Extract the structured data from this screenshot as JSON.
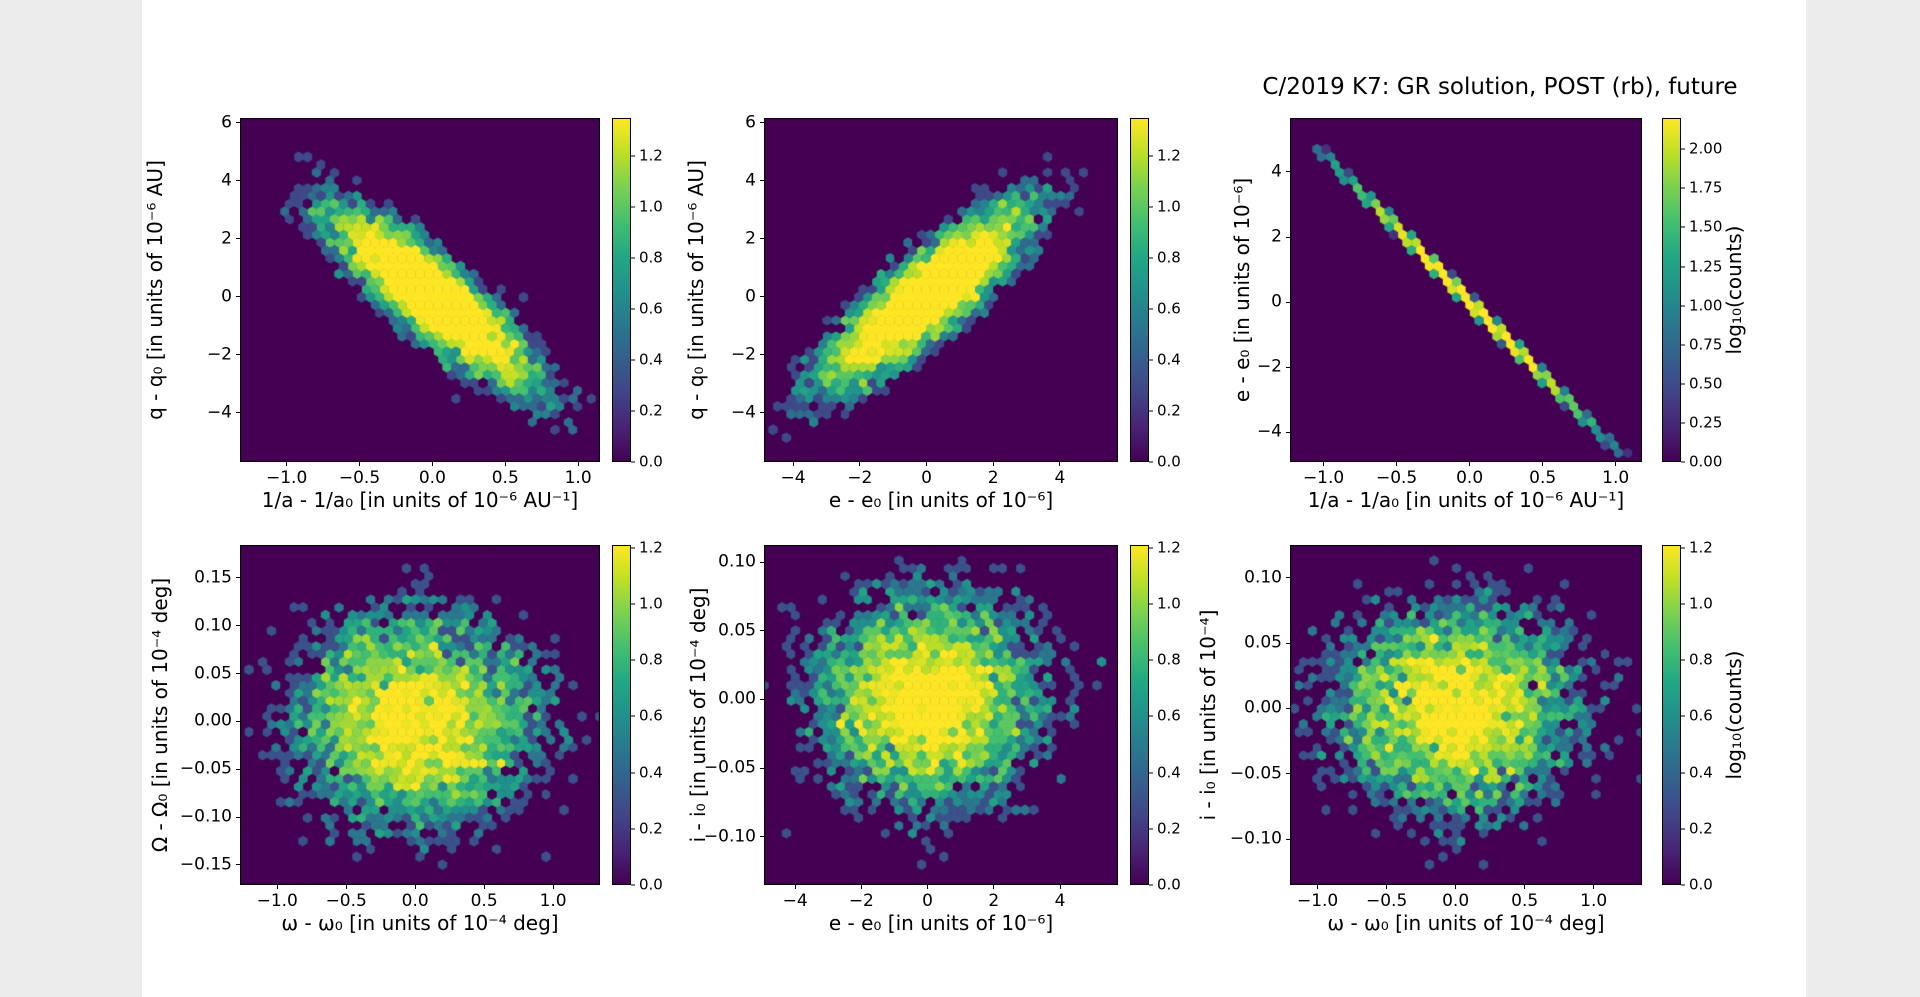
{
  "figure_title": "C/2019 K7: GR solution, POST (rb), future",
  "colors": {
    "page_margin": "#ececec",
    "figure_background": "#ffffff",
    "plot_background": "#440154",
    "axis_color": "#000000",
    "viridis_stops": [
      "#440154",
      "#482475",
      "#414487",
      "#355f8d",
      "#2a788e",
      "#21918c",
      "#22a884",
      "#44bf70",
      "#7ad151",
      "#bddf26",
      "#fde725"
    ]
  },
  "chart_data": [
    {
      "name": "q - q0 vs 1/a - 1/a0",
      "type": "hexbin",
      "xlabel": "1/a - 1/a₀ [in units of 10⁻⁶ AU⁻¹]",
      "ylabel": "q - q₀ [in units of 10⁻⁶ AU]",
      "xlim": [
        -1.32,
        1.15
      ],
      "ylim": [
        -5.69,
        6.17
      ],
      "xticks": {
        "values": [
          -1.0,
          -0.5,
          0.0,
          0.5,
          1.0
        ],
        "labels": [
          "−1.0",
          "−0.5",
          "0.0",
          "0.5",
          "1.0"
        ]
      },
      "yticks": {
        "values": [
          6,
          4,
          2,
          0,
          -2,
          -4
        ],
        "labels": [
          "6",
          "4",
          "2",
          "0",
          "−2",
          "−4"
        ]
      },
      "distribution": {
        "kind": "gaussian",
        "n": 6000,
        "center": [
          0,
          0
        ],
        "sigma": [
          0.36,
          1.6
        ],
        "rho": -0.87,
        "seed": 11
      },
      "colorbar": {
        "vmax": 1.35,
        "tick_values": [
          0,
          0.2,
          0.4,
          0.6,
          0.8,
          1.0,
          1.2
        ],
        "tick_labels": [
          "0.0",
          "0.2",
          "0.4",
          "0.6",
          "0.8",
          "1.0",
          "1.2"
        ],
        "label": ""
      }
    },
    {
      "name": "q - q0 vs e - e0",
      "type": "hexbin",
      "xlabel": "e - e₀ [in units of 10⁻⁶]",
      "ylabel": "q - q₀ [in units of 10⁻⁶ AU]",
      "xlim": [
        -4.87,
        5.74
      ],
      "ylim": [
        -5.69,
        6.17
      ],
      "xticks": {
        "values": [
          -4,
          -2,
          0,
          2,
          4
        ],
        "labels": [
          "−4",
          "−2",
          "0",
          "2",
          "4"
        ]
      },
      "yticks": {
        "values": [
          6,
          4,
          2,
          0,
          -2,
          -4
        ],
        "labels": [
          "6",
          "4",
          "2",
          "0",
          "−2",
          "−4"
        ]
      },
      "distribution": {
        "kind": "gaussian",
        "n": 6000,
        "center": [
          0,
          0
        ],
        "sigma": [
          1.6,
          1.6
        ],
        "rho": 0.86,
        "seed": 22
      },
      "colorbar": {
        "vmax": 1.35,
        "tick_values": [
          0,
          0.2,
          0.4,
          0.6,
          0.8,
          1.0,
          1.2
        ],
        "tick_labels": [
          "0.0",
          "0.2",
          "0.4",
          "0.6",
          "0.8",
          "1.0",
          "1.2"
        ],
        "label": ""
      }
    },
    {
      "name": "e - e0 vs 1/a - 1/a0",
      "type": "hexbin",
      "xlabel": "1/a - 1/a₀ [in units of 10⁻⁶ AU⁻¹]",
      "ylabel": "e - e₀ [in units of 10⁻⁶]",
      "xlim": [
        -1.23,
        1.18
      ],
      "ylim": [
        -4.92,
        5.66
      ],
      "xticks": {
        "values": [
          -1.0,
          -0.5,
          0.0,
          0.5,
          1.0
        ],
        "labels": [
          "−1.0",
          "−0.5",
          "0.0",
          "0.5",
          "1.0"
        ]
      },
      "yticks": {
        "values": [
          4,
          2,
          0,
          -2,
          -4
        ],
        "labels": [
          "4",
          "2",
          "0",
          "−2",
          "−4"
        ]
      },
      "distribution": {
        "kind": "line",
        "n": 6000,
        "sigma": 0.37,
        "slope": -4.55,
        "noise": 0.04,
        "xclip": 1.06,
        "seed": 33
      },
      "colorbar": {
        "vmax": 2.2,
        "tick_values": [
          0,
          0.25,
          0.5,
          0.75,
          1.0,
          1.25,
          1.5,
          1.75,
          2.0
        ],
        "tick_labels": [
          "0.00",
          "0.25",
          "0.50",
          "0.75",
          "1.00",
          "1.25",
          "1.50",
          "1.75",
          "2.00"
        ],
        "label": "log₁₀(counts)"
      }
    },
    {
      "name": "Omega - Omega0 vs omega - omega0",
      "type": "hexbin",
      "xlabel": "ω - ω₀ [in units of 10⁻⁴ deg]",
      "ylabel": "Ω - Ω₀ [in units of 10⁻⁴ deg]",
      "xlim": [
        -1.27,
        1.34
      ],
      "ylim": [
        -0.171,
        0.1845
      ],
      "xticks": {
        "values": [
          -1.0,
          -0.5,
          0.0,
          0.5,
          1.0
        ],
        "labels": [
          "−1.0",
          "−0.5",
          "0.0",
          "0.5",
          "1.0"
        ]
      },
      "yticks": {
        "values": [
          0.15,
          0.1,
          0.05,
          0.0,
          -0.05,
          -0.1,
          -0.15
        ],
        "labels": [
          "0.15",
          "0.10",
          "0.05",
          "0.00",
          "−0.05",
          "−0.10",
          "−0.15"
        ]
      },
      "distribution": {
        "kind": "gaussian",
        "n": 6000,
        "center": [
          0,
          0
        ],
        "sigma": [
          0.46,
          0.058
        ],
        "rho": 0,
        "seed": 44
      },
      "colorbar": {
        "vmax": 1.21,
        "tick_values": [
          0,
          0.2,
          0.4,
          0.6,
          0.8,
          1.0,
          1.2
        ],
        "tick_labels": [
          "0.0",
          "0.2",
          "0.4",
          "0.6",
          "0.8",
          "1.0",
          "1.2"
        ],
        "label": ""
      }
    },
    {
      "name": "i - i0 vs e - e0",
      "type": "hexbin",
      "xlabel": "e - e₀ [in units of 10⁻⁶]",
      "ylabel": "i - i₀ [in units of 10⁻⁴ deg]",
      "xlim": [
        -4.94,
        5.75
      ],
      "ylim": [
        -0.135,
        0.1124
      ],
      "xticks": {
        "values": [
          -4,
          -2,
          0,
          2,
          4
        ],
        "labels": [
          "−4",
          "−2",
          "0",
          "2",
          "4"
        ]
      },
      "yticks": {
        "values": [
          0.1,
          0.05,
          0.0,
          -0.05,
          -0.1
        ],
        "labels": [
          "0.10",
          "0.05",
          "0.00",
          "−0.05",
          "−0.10"
        ]
      },
      "distribution": {
        "kind": "gaussian",
        "n": 6000,
        "center": [
          0,
          0
        ],
        "sigma": [
          1.75,
          0.04
        ],
        "rho": 0,
        "seed": 55
      },
      "colorbar": {
        "vmax": 1.21,
        "tick_values": [
          0,
          0.2,
          0.4,
          0.6,
          0.8,
          1.0,
          1.2
        ],
        "tick_labels": [
          "0.0",
          "0.2",
          "0.4",
          "0.6",
          "0.8",
          "1.0",
          "1.2"
        ],
        "label": ""
      }
    },
    {
      "name": "i - i0 vs omega - omega0",
      "type": "hexbin",
      "xlabel": "ω - ω₀ [in units of 10⁻⁴ deg]",
      "ylabel": "i - i₀ [in units of 10⁻⁴]",
      "xlim": [
        -1.2,
        1.35
      ],
      "ylim": [
        -0.135,
        0.125
      ],
      "xticks": {
        "values": [
          -1.0,
          -0.5,
          0.0,
          0.5,
          1.0
        ],
        "labels": [
          "−1.0",
          "−0.5",
          "0.0",
          "0.5",
          "1.0"
        ]
      },
      "yticks": {
        "values": [
          0.1,
          0.05,
          0.0,
          -0.05,
          -0.1
        ],
        "labels": [
          "0.10",
          "0.05",
          "0.00",
          "−0.05",
          "−0.10"
        ]
      },
      "distribution": {
        "kind": "gaussian",
        "n": 6000,
        "center": [
          0,
          0
        ],
        "sigma": [
          0.46,
          0.04
        ],
        "rho": 0,
        "seed": 66
      },
      "colorbar": {
        "vmax": 1.21,
        "tick_values": [
          0,
          0.2,
          0.4,
          0.6,
          0.8,
          1.0,
          1.2
        ],
        "tick_labels": [
          "0.0",
          "0.2",
          "0.4",
          "0.6",
          "0.8",
          "1.0",
          "1.2"
        ],
        "label": "log₁₀(counts)"
      }
    }
  ]
}
